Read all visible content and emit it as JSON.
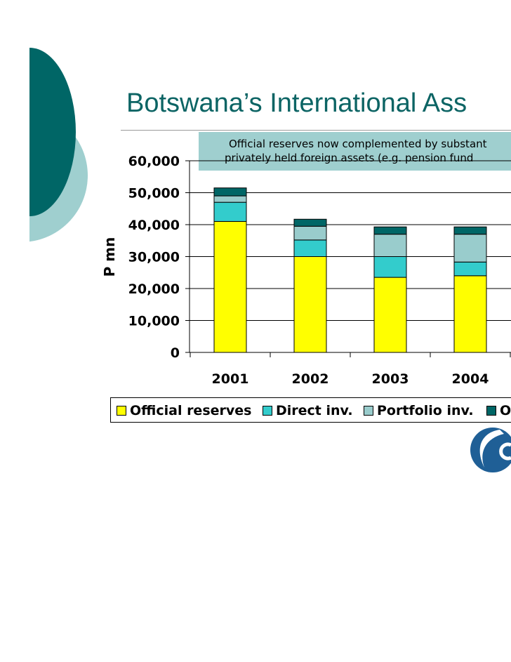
{
  "title": "Botswana’s International Ass",
  "callout": {
    "line1": "Official reserves now complemented by substant",
    "line2": "privately held foreign assets (e.g. pension fund"
  },
  "legend": {
    "official": "Official reserves",
    "direct": "Direct inv.",
    "portfolio": "Portfolio inv.",
    "other": "O"
  },
  "chart_data": {
    "type": "bar",
    "stacked": true,
    "categories": [
      "2001",
      "2002",
      "2003",
      "2004"
    ],
    "series": [
      {
        "name": "Official reserves",
        "color": "#ffff00",
        "values": [
          41000,
          30000,
          23500,
          24000
        ]
      },
      {
        "name": "Direct inv.",
        "color": "#33cccc",
        "values": [
          6000,
          5200,
          6500,
          4300
        ]
      },
      {
        "name": "Portfolio inv.",
        "color": "#99cccc",
        "values": [
          2000,
          4300,
          7000,
          8700
        ]
      },
      {
        "name": "O",
        "color": "#006666",
        "values": [
          2500,
          2200,
          2300,
          2300
        ]
      }
    ],
    "ylabel": "P mn",
    "ylim": [
      0,
      60000
    ],
    "yticks": [
      "0",
      "10,000",
      "20,000",
      "30,000",
      "40,000",
      "50,000",
      "60,000"
    ],
    "grid": true
  },
  "colors": {
    "title": "#0c6464",
    "deco_dark": "#006666",
    "deco_light": "#9fcfcf",
    "callout_bg": "#9fcfcf"
  }
}
